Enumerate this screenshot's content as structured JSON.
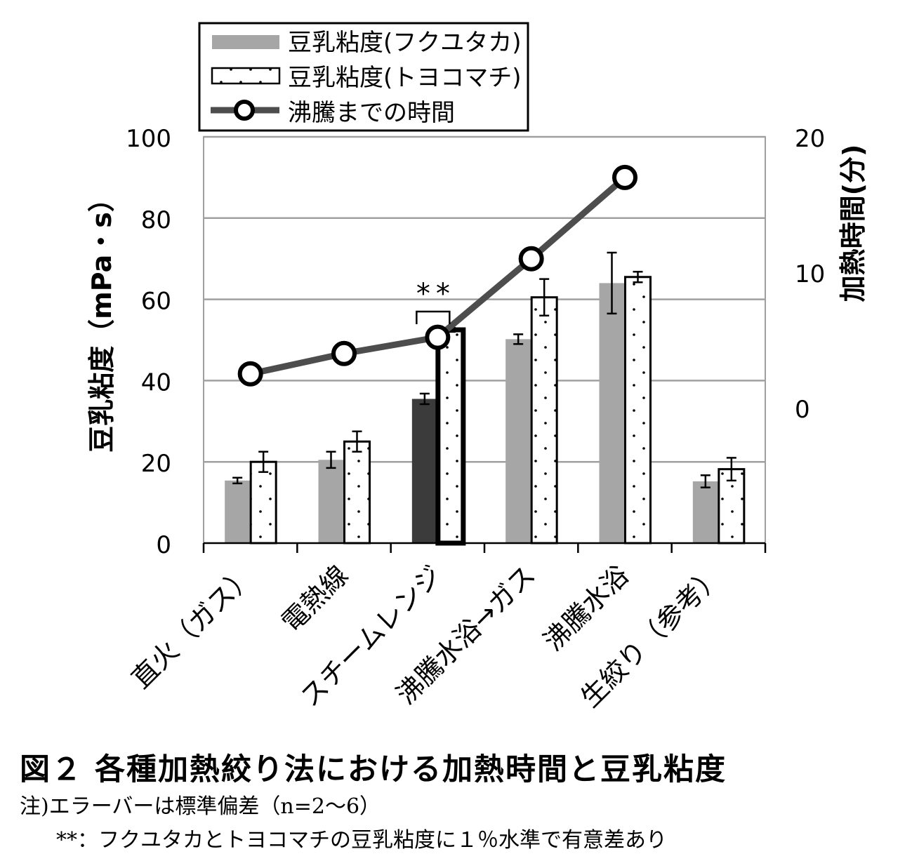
{
  "chart_data": {
    "type": "bar",
    "categories": [
      "直火（ガス）",
      "電熱線",
      "スチームレンジ",
      "沸騰水浴→ガス",
      "沸騰水浴",
      "生絞り（参考）"
    ],
    "series": [
      {
        "name": "豆乳粘度(フクユタカ)",
        "type": "bar",
        "pattern": "solid-gray",
        "values": [
          15.4,
          20.5,
          35.5,
          50.2,
          64.0,
          15.2
        ],
        "errors": [
          0.7,
          2.0,
          1.3,
          1.2,
          7.5,
          1.5
        ]
      },
      {
        "name": "豆乳粘度(トヨコマチ)",
        "type": "bar",
        "pattern": "dotted-white",
        "values": [
          20.0,
          25.0,
          52.5,
          60.5,
          65.5,
          18.2
        ],
        "errors": [
          2.5,
          2.5,
          0.5,
          4.5,
          1.3,
          2.8
        ]
      },
      {
        "name": "沸騰までの時間",
        "type": "line",
        "axis": "right",
        "values": [
          2.5,
          4.0,
          5.2,
          11.0,
          17.0,
          null
        ]
      }
    ],
    "y_left": {
      "label": "豆乳粘度（mPa・s）",
      "range": [
        0,
        100
      ],
      "ticks": [
        "0",
        "20",
        "40",
        "60",
        "80",
        "100"
      ]
    },
    "y_right": {
      "label": "加熱時間(分)",
      "range": [
        -10,
        20
      ],
      "ticks": [
        "0",
        "10",
        "20"
      ]
    },
    "highlight": {
      "category_index": 2,
      "fukuyutaka_color": "#3b3b3b",
      "thick_outline": true
    },
    "significance": {
      "category_index": 2,
      "label": "**"
    },
    "legend": {
      "position": "top-left"
    },
    "grid": true,
    "colors": {
      "fukuyutaka": "#a6a6a6",
      "highlight_bar": "#3b3b3b",
      "line": "#4d4d4d",
      "grid": "#a0a0a0"
    }
  },
  "caption": {
    "title": "図２ 各種加熱絞り法における加熱時間と豆乳粘度",
    "note1": "注)エラーバーは標準偏差（n=2～6）",
    "note2": "**：フクユタカとトヨコマチの豆乳粘度に１％水準で有意差あり"
  }
}
